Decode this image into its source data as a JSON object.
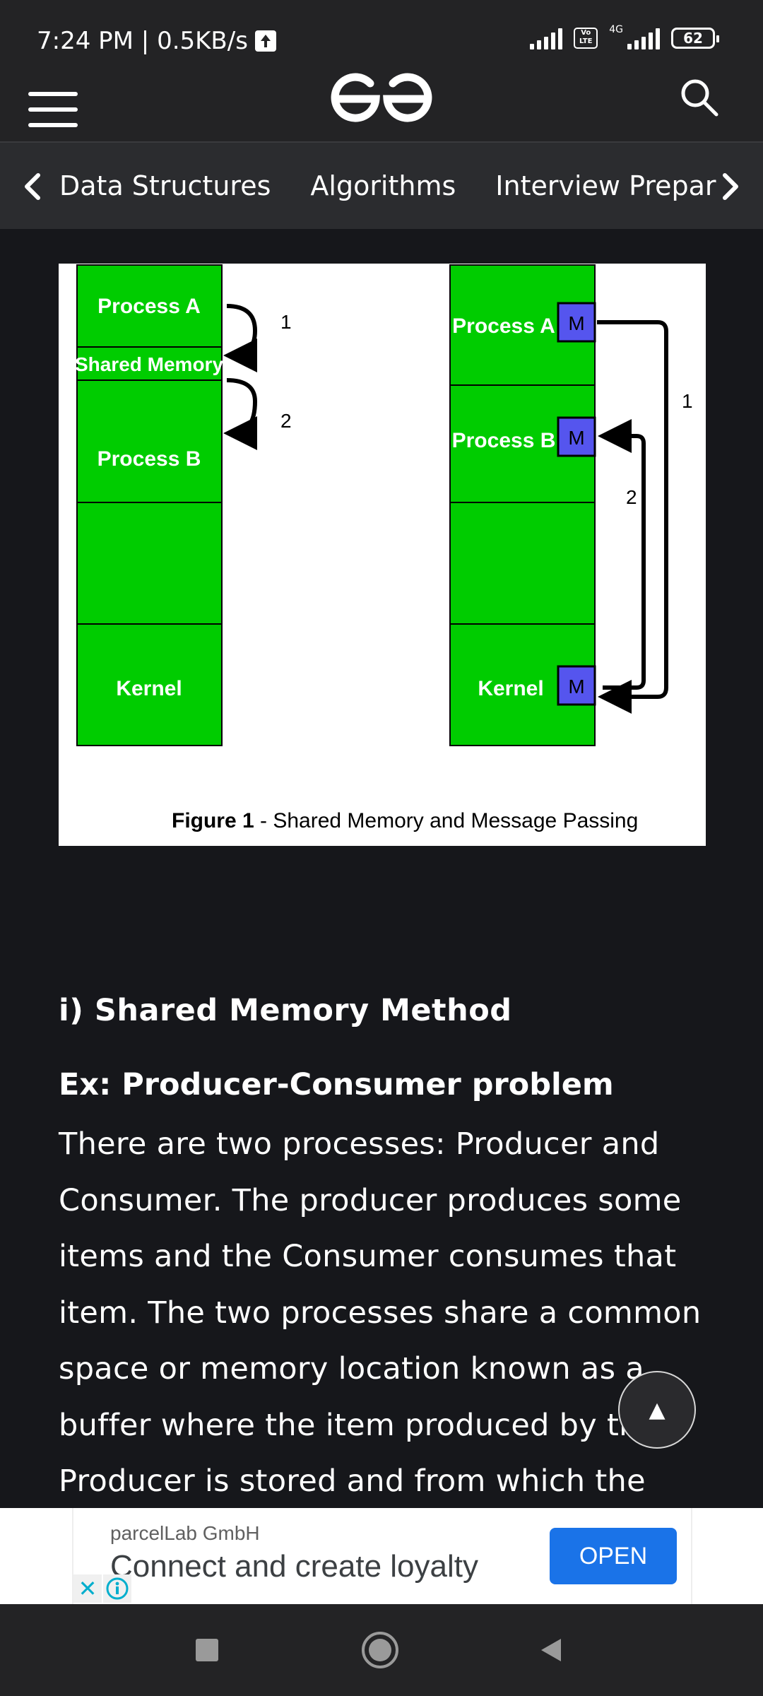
{
  "status_bar": {
    "time_speed": "7:24 PM | 0.5KB/s",
    "network_type": "4G",
    "volte": "Vo LTE",
    "battery": "62"
  },
  "header": {
    "logo_icon": "geeksforgeeks-logo-icon",
    "menu_icon": "hamburger-menu-icon",
    "search_icon": "search-icon"
  },
  "category_nav": {
    "items": [
      "Data Structures",
      "Algorithms",
      "Interview Preparati"
    ]
  },
  "figure": {
    "left": {
      "process_a": "Process A",
      "shared_memory": "Shared Memory",
      "process_b": "Process B",
      "kernel": "Kernel",
      "arrow_1": "1",
      "arrow_2": "2"
    },
    "right": {
      "process_a": "Process A",
      "process_b": "Process B",
      "kernel": "Kernel",
      "m": "M",
      "arrow_1": "1",
      "arrow_2": "2"
    },
    "caption_bold": "Figure 1",
    "caption_rest": " - Shared Memory and Message Passing"
  },
  "article": {
    "heading": "i) Shared Memory Method",
    "subheading": "Ex: Producer-Consumer problem",
    "paragraph": "There are two processes: Producer and Consumer. The producer produces some items and the Consumer consumes that item. The two processes share a common space or memory location known as a buffer where the item produced by the Producer is stored and from which the"
  },
  "scroll_top": {
    "glyph": "▲"
  },
  "ad": {
    "company": "parcelLab GmbH",
    "headline": "Connect and create loyalty",
    "cta": "OPEN",
    "close_glyph": "✕"
  },
  "colors": {
    "background": "#16171b",
    "bar": "#232325",
    "figure_green": "#00cc00",
    "message_blue": "#5555ee",
    "ad_button": "#1a73e8"
  }
}
